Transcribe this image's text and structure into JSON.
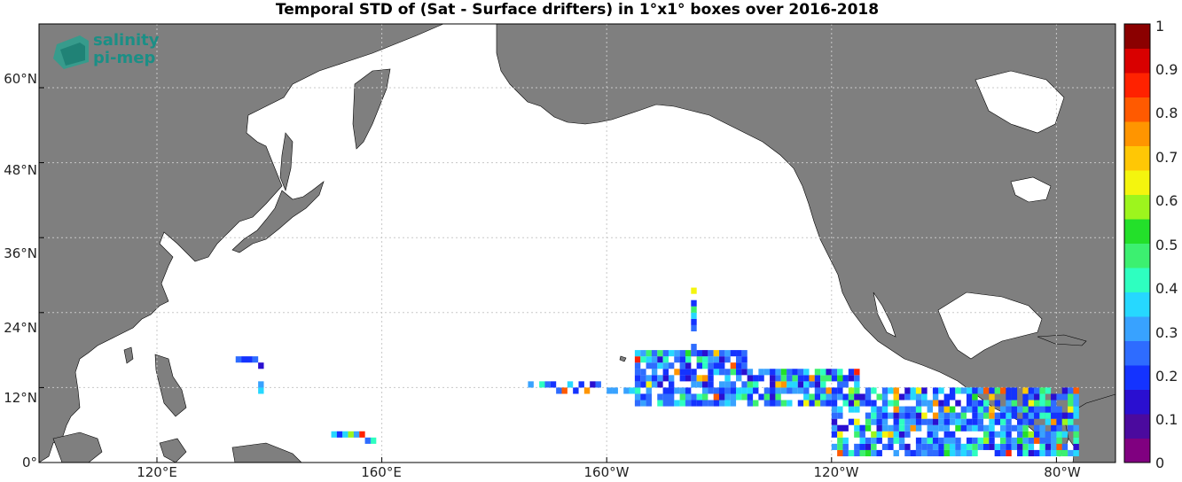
{
  "title": "Temporal STD of (Sat - Surface drifters) in 1°x1° boxes over 2016-2018",
  "logo": {
    "line1": "salinity",
    "line2": "pi-mep"
  },
  "axes": {
    "lat_ticks": [
      "60°N",
      "48°N",
      "36°N",
      "24°N",
      "12°N",
      "0°"
    ],
    "lon_ticks": [
      "120°E",
      "160°E",
      "160°W",
      "120°W",
      "80°W"
    ]
  },
  "colorbar": {
    "min": 0,
    "max": 1,
    "labels": [
      "1",
      "0.9",
      "0.8",
      "0.7",
      "0.6",
      "0.5",
      "0.4",
      "0.3",
      "0.2",
      "0.1",
      "0"
    ],
    "colors": [
      "#800080",
      "#4b0a9e",
      "#2a0fd0",
      "#1433ff",
      "#2e6cff",
      "#38a2ff",
      "#26d8ff",
      "#2effc0",
      "#3cf070",
      "#23e02a",
      "#9df51d",
      "#f4f50e",
      "#ffc705",
      "#ff9500",
      "#ff5a00",
      "#ff2200",
      "#d90000",
      "#8b0000"
    ]
  },
  "colors": {
    "land": "#7f7f7f",
    "ocean": "#ffffff",
    "grid": "#c8c8c8"
  }
}
